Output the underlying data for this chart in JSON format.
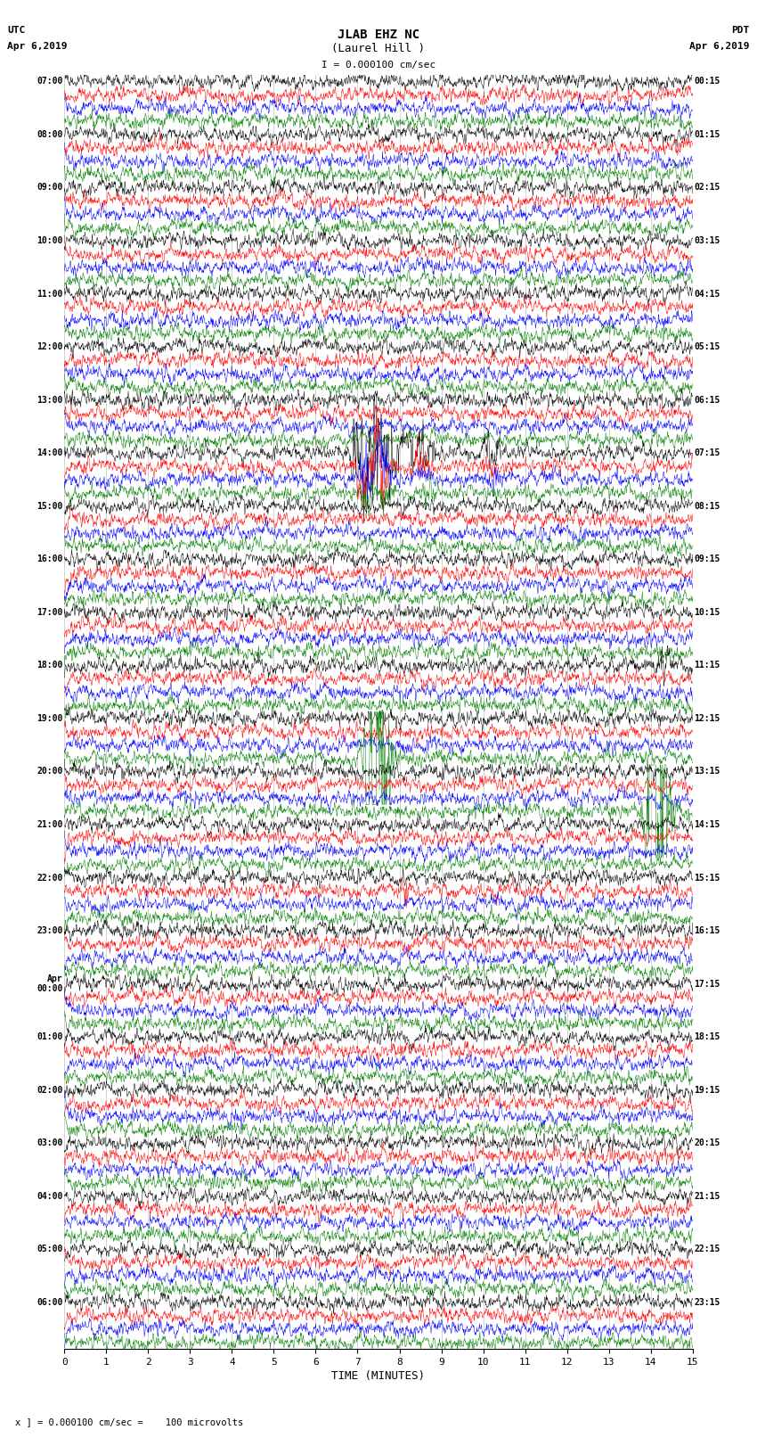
{
  "title_line1": "JLAB EHZ NC",
  "title_line2": "(Laurel Hill )",
  "scale_text": "I = 0.000100 cm/sec",
  "left_label_top": "UTC",
  "left_label_date": "Apr 6,2019",
  "right_label_top": "PDT",
  "right_label_date": "Apr 6,2019",
  "xlabel": "TIME (MINUTES)",
  "footnote": "x ] = 0.000100 cm/sec =    100 microvolts",
  "bg_color": "#ffffff",
  "trace_colors": [
    "black",
    "red",
    "blue",
    "green"
  ],
  "utc_labels": [
    "07:00",
    "08:00",
    "09:00",
    "10:00",
    "11:00",
    "12:00",
    "13:00",
    "14:00",
    "15:00",
    "16:00",
    "17:00",
    "18:00",
    "19:00",
    "20:00",
    "21:00",
    "22:00",
    "23:00",
    "Apr\n00:00",
    "01:00",
    "02:00",
    "03:00",
    "04:00",
    "05:00",
    "06:00"
  ],
  "pdt_labels": [
    "00:15",
    "01:15",
    "02:15",
    "03:15",
    "04:15",
    "05:15",
    "06:15",
    "07:15",
    "08:15",
    "09:15",
    "10:15",
    "11:15",
    "12:15",
    "13:15",
    "14:15",
    "15:15",
    "16:15",
    "17:15",
    "18:15",
    "19:15",
    "20:15",
    "21:15",
    "22:15",
    "23:15"
  ],
  "n_hours": 24,
  "traces_per_hour": 4,
  "xlim": [
    0,
    15
  ],
  "xticks": [
    0,
    1,
    2,
    3,
    4,
    5,
    6,
    7,
    8,
    9,
    10,
    11,
    12,
    13,
    14,
    15
  ],
  "seed": 42
}
